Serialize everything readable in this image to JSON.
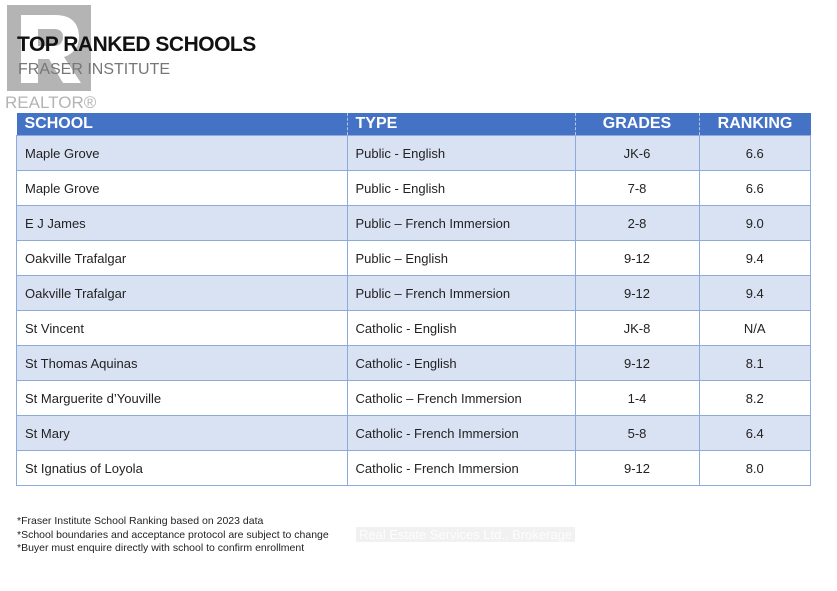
{
  "logo": {
    "letter": "R",
    "word": "REALTOR®"
  },
  "title": "TOP RANKED SCHOOLS",
  "subtitle": "FRASER INSTITUTE",
  "table": {
    "headers": [
      "SCHOOL",
      "TYPE",
      "GRADES",
      "RANKING"
    ],
    "rows": [
      [
        "Maple Grove",
        "Public - English",
        "JK-6",
        "6.6"
      ],
      [
        "Maple Grove",
        "Public - English",
        "7-8",
        "6.6"
      ],
      [
        "E J James",
        "Public – French Immersion",
        "2-8",
        "9.0"
      ],
      [
        "Oakville Trafalgar",
        "Public – English",
        "9-12",
        "9.4"
      ],
      [
        "Oakville Trafalgar",
        "Public – French Immersion",
        "9-12",
        "9.4"
      ],
      [
        "St Vincent",
        "Catholic - English",
        "JK-8",
        "N/A"
      ],
      [
        "St Thomas Aquinas",
        "Catholic - English",
        "9-12",
        "8.1"
      ],
      [
        "St Marguerite d’Youville",
        "Catholic – French Immersion",
        "1-4",
        "8.2"
      ],
      [
        "St Mary",
        "Catholic - French Immersion",
        "5-8",
        "6.4"
      ],
      [
        "St Ignatius of Loyola",
        "Catholic - French Immersion",
        "9-12",
        "8.0"
      ]
    ]
  },
  "notes": [
    "*Fraser Institute School Ranking based on 2023 data",
    "*School boundaries and acceptance protocol are subject to change",
    "*Buyer must enquire directly with school to confirm enrollment"
  ],
  "watermark": "Real Estate Services Ltd., Brokerage"
}
